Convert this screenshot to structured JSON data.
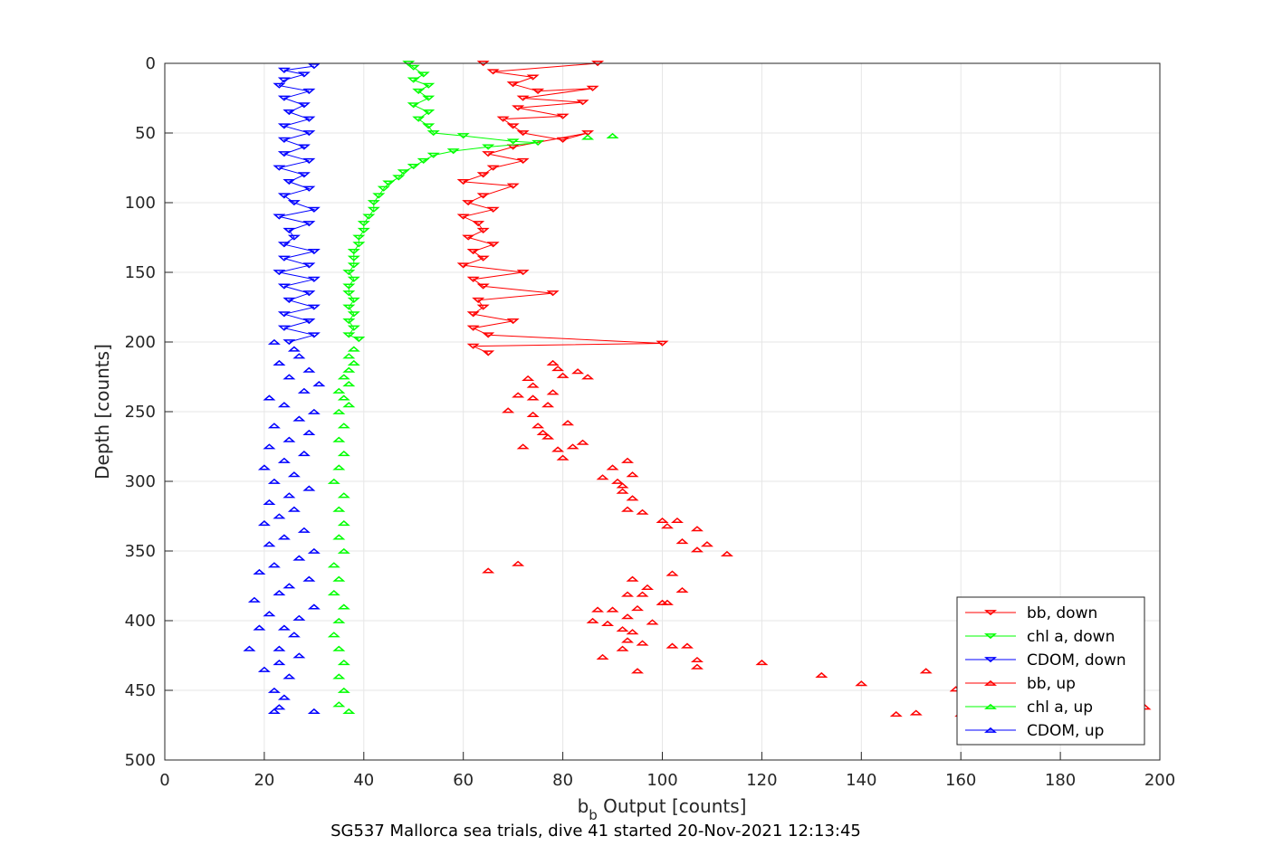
{
  "caption": "SG537 Mallorca sea trials, dive 41 started 20-Nov-2021 12:13:45",
  "chart_data": {
    "type": "scatter",
    "ylabel": "Depth [counts]",
    "xlabel": {
      "main": "b",
      "sub": "b",
      "rest": " Output [counts]"
    },
    "xlim": [
      0,
      200
    ],
    "ylim": [
      0,
      500
    ],
    "y_reversed": true,
    "xticks": [
      0,
      20,
      40,
      60,
      80,
      100,
      120,
      140,
      160,
      180,
      200
    ],
    "yticks": [
      0,
      50,
      100,
      150,
      200,
      250,
      300,
      350,
      400,
      450,
      500
    ],
    "grid": true,
    "legend_position": "bottom-right",
    "series": [
      {
        "name": "bb, down",
        "color": "#ff0000",
        "marker": "triangle-down",
        "line": true,
        "points": [
          [
            64,
            0
          ],
          [
            87,
            0
          ],
          [
            66,
            6
          ],
          [
            74,
            10
          ],
          [
            70,
            15
          ],
          [
            75,
            20
          ],
          [
            86,
            18
          ],
          [
            72,
            25
          ],
          [
            84,
            28
          ],
          [
            71,
            32
          ],
          [
            80,
            38
          ],
          [
            68,
            40
          ],
          [
            70,
            45
          ],
          [
            72,
            50
          ],
          [
            80,
            55
          ],
          [
            85,
            50
          ],
          [
            70,
            60
          ],
          [
            65,
            65
          ],
          [
            72,
            70
          ],
          [
            66,
            75
          ],
          [
            64,
            80
          ],
          [
            60,
            85
          ],
          [
            70,
            88
          ],
          [
            64,
            95
          ],
          [
            61,
            100
          ],
          [
            66,
            105
          ],
          [
            60,
            110
          ],
          [
            63,
            115
          ],
          [
            64,
            120
          ],
          [
            61,
            125
          ],
          [
            66,
            130
          ],
          [
            62,
            135
          ],
          [
            64,
            140
          ],
          [
            60,
            145
          ],
          [
            72,
            150
          ],
          [
            62,
            155
          ],
          [
            64,
            160
          ],
          [
            78,
            165
          ],
          [
            63,
            170
          ],
          [
            64,
            175
          ],
          [
            62,
            180
          ],
          [
            70,
            185
          ],
          [
            62,
            190
          ],
          [
            65,
            195
          ],
          [
            100,
            201
          ],
          [
            62,
            203
          ],
          [
            65,
            208
          ]
        ]
      },
      {
        "name": "chl a, down",
        "color": "#00ff00",
        "marker": "triangle-down",
        "line": true,
        "points": [
          [
            49,
            0
          ],
          [
            50,
            3
          ],
          [
            52,
            8
          ],
          [
            50,
            12
          ],
          [
            53,
            16
          ],
          [
            51,
            20
          ],
          [
            53,
            25
          ],
          [
            50,
            30
          ],
          [
            53,
            35
          ],
          [
            51,
            40
          ],
          [
            53,
            45
          ],
          [
            54,
            50
          ],
          [
            60,
            52
          ],
          [
            70,
            56
          ],
          [
            75,
            57
          ],
          [
            65,
            60
          ],
          [
            58,
            63
          ],
          [
            54,
            66
          ],
          [
            52,
            70
          ],
          [
            50,
            74
          ],
          [
            48,
            78
          ],
          [
            47,
            82
          ],
          [
            45,
            86
          ],
          [
            44,
            90
          ],
          [
            43,
            95
          ],
          [
            42,
            100
          ],
          [
            42,
            105
          ],
          [
            41,
            110
          ],
          [
            40,
            115
          ],
          [
            40,
            120
          ],
          [
            39,
            125
          ],
          [
            39,
            130
          ],
          [
            38,
            135
          ],
          [
            38,
            140
          ],
          [
            38,
            145
          ],
          [
            37,
            150
          ],
          [
            38,
            155
          ],
          [
            37,
            160
          ],
          [
            37,
            165
          ],
          [
            38,
            170
          ],
          [
            37,
            175
          ],
          [
            38,
            180
          ],
          [
            37,
            185
          ],
          [
            38,
            190
          ],
          [
            37,
            195
          ],
          [
            39,
            198
          ]
        ]
      },
      {
        "name": "CDOM, down",
        "color": "#0000ff",
        "marker": "triangle-down",
        "line": true,
        "points": [
          [
            30,
            2
          ],
          [
            24,
            5
          ],
          [
            28,
            8
          ],
          [
            24,
            12
          ],
          [
            23,
            16
          ],
          [
            29,
            20
          ],
          [
            24,
            25
          ],
          [
            28,
            30
          ],
          [
            25,
            35
          ],
          [
            29,
            40
          ],
          [
            24,
            45
          ],
          [
            29,
            50
          ],
          [
            24,
            55
          ],
          [
            28,
            60
          ],
          [
            24,
            65
          ],
          [
            29,
            70
          ],
          [
            23,
            75
          ],
          [
            28,
            80
          ],
          [
            25,
            85
          ],
          [
            29,
            90
          ],
          [
            24,
            95
          ],
          [
            26,
            100
          ],
          [
            30,
            105
          ],
          [
            23,
            110
          ],
          [
            29,
            115
          ],
          [
            25,
            120
          ],
          [
            26,
            125
          ],
          [
            24,
            130
          ],
          [
            30,
            135
          ],
          [
            24,
            140
          ],
          [
            29,
            145
          ],
          [
            23,
            150
          ],
          [
            30,
            155
          ],
          [
            24,
            160
          ],
          [
            29,
            165
          ],
          [
            25,
            170
          ],
          [
            30,
            175
          ],
          [
            24,
            180
          ],
          [
            29,
            185
          ],
          [
            24,
            190
          ],
          [
            30,
            195
          ],
          [
            25,
            200
          ]
        ]
      },
      {
        "name": "bb, up",
        "color": "#ff0000",
        "marker": "triangle-up",
        "line": false,
        "points": [
          [
            197,
            462
          ],
          [
            160,
            467
          ],
          [
            151,
            466
          ],
          [
            147,
            467
          ],
          [
            153,
            436
          ],
          [
            159,
            449
          ],
          [
            140,
            445
          ],
          [
            132,
            439
          ],
          [
            120,
            430
          ],
          [
            107,
            433
          ],
          [
            107,
            428
          ],
          [
            105,
            418
          ],
          [
            102,
            418
          ],
          [
            96,
            416
          ],
          [
            93,
            414
          ],
          [
            92,
            420
          ],
          [
            88,
            426
          ],
          [
            95,
            436
          ],
          [
            89,
            402
          ],
          [
            93,
            397
          ],
          [
            90,
            392
          ],
          [
            98,
            401
          ],
          [
            95,
            391
          ],
          [
            96,
            381
          ],
          [
            100,
            387
          ],
          [
            101,
            387
          ],
          [
            104,
            378
          ],
          [
            102,
            366
          ],
          [
            94,
            370
          ],
          [
            97,
            376
          ],
          [
            93,
            381
          ],
          [
            87,
            392
          ],
          [
            86,
            400
          ],
          [
            92,
            406
          ],
          [
            94,
            408
          ],
          [
            65,
            364
          ],
          [
            71,
            359
          ],
          [
            109,
            345
          ],
          [
            113,
            352
          ],
          [
            107,
            349
          ],
          [
            104,
            343
          ],
          [
            107,
            334
          ],
          [
            101,
            332
          ],
          [
            103,
            328
          ],
          [
            100,
            328
          ],
          [
            96,
            322
          ],
          [
            93,
            320
          ],
          [
            94,
            312
          ],
          [
            92,
            307
          ],
          [
            92,
            303
          ],
          [
            91,
            300
          ],
          [
            88,
            297
          ],
          [
            94,
            295
          ],
          [
            90,
            290
          ],
          [
            93,
            285
          ],
          [
            80,
            283
          ],
          [
            79,
            277
          ],
          [
            82,
            275
          ],
          [
            72,
            275
          ],
          [
            84,
            272
          ],
          [
            77,
            268
          ],
          [
            76,
            265
          ],
          [
            75,
            260
          ],
          [
            81,
            258
          ],
          [
            74,
            252
          ],
          [
            69,
            249
          ],
          [
            77,
            245
          ],
          [
            74,
            240
          ],
          [
            71,
            238
          ],
          [
            78,
            236
          ],
          [
            74,
            231
          ],
          [
            73,
            226
          ],
          [
            80,
            224
          ],
          [
            83,
            221
          ],
          [
            79,
            219
          ],
          [
            85,
            225
          ],
          [
            78,
            215
          ]
        ]
      },
      {
        "name": "chl a, up",
        "color": "#00ff00",
        "marker": "triangle-up",
        "line": false,
        "points": [
          [
            90,
            52
          ],
          [
            85,
            53
          ],
          [
            38,
            205
          ],
          [
            37,
            210
          ],
          [
            38,
            215
          ],
          [
            37,
            220
          ],
          [
            36,
            225
          ],
          [
            37,
            230
          ],
          [
            35,
            235
          ],
          [
            36,
            240
          ],
          [
            37,
            245
          ],
          [
            35,
            250
          ],
          [
            36,
            260
          ],
          [
            35,
            270
          ],
          [
            36,
            280
          ],
          [
            35,
            290
          ],
          [
            34,
            300
          ],
          [
            36,
            310
          ],
          [
            35,
            320
          ],
          [
            36,
            330
          ],
          [
            35,
            340
          ],
          [
            36,
            350
          ],
          [
            34,
            360
          ],
          [
            35,
            370
          ],
          [
            34,
            380
          ],
          [
            36,
            390
          ],
          [
            35,
            400
          ],
          [
            34,
            410
          ],
          [
            35,
            420
          ],
          [
            36,
            430
          ],
          [
            35,
            440
          ],
          [
            36,
            450
          ],
          [
            35,
            460
          ],
          [
            37,
            465
          ]
        ]
      },
      {
        "name": "CDOM, up",
        "color": "#0000ff",
        "marker": "triangle-up",
        "line": false,
        "points": [
          [
            22,
            465
          ],
          [
            23,
            462
          ],
          [
            30,
            465
          ],
          [
            24,
            455
          ],
          [
            22,
            450
          ],
          [
            25,
            440
          ],
          [
            20,
            435
          ],
          [
            23,
            430
          ],
          [
            27,
            425
          ],
          [
            17,
            420
          ],
          [
            23,
            420
          ],
          [
            26,
            410
          ],
          [
            19,
            405
          ],
          [
            24,
            405
          ],
          [
            21,
            395
          ],
          [
            27,
            398
          ],
          [
            30,
            390
          ],
          [
            18,
            385
          ],
          [
            23,
            380
          ],
          [
            25,
            375
          ],
          [
            29,
            370
          ],
          [
            19,
            365
          ],
          [
            22,
            360
          ],
          [
            27,
            355
          ],
          [
            30,
            350
          ],
          [
            21,
            345
          ],
          [
            24,
            340
          ],
          [
            28,
            335
          ],
          [
            20,
            330
          ],
          [
            23,
            325
          ],
          [
            26,
            320
          ],
          [
            21,
            315
          ],
          [
            25,
            310
          ],
          [
            29,
            305
          ],
          [
            22,
            300
          ],
          [
            26,
            295
          ],
          [
            20,
            290
          ],
          [
            24,
            285
          ],
          [
            28,
            280
          ],
          [
            21,
            275
          ],
          [
            25,
            270
          ],
          [
            29,
            265
          ],
          [
            22,
            260
          ],
          [
            27,
            255
          ],
          [
            30,
            250
          ],
          [
            24,
            245
          ],
          [
            21,
            240
          ],
          [
            28,
            235
          ],
          [
            31,
            230
          ],
          [
            25,
            225
          ],
          [
            29,
            220
          ],
          [
            23,
            215
          ],
          [
            27,
            210
          ],
          [
            26,
            205
          ],
          [
            22,
            200
          ]
        ]
      }
    ]
  }
}
